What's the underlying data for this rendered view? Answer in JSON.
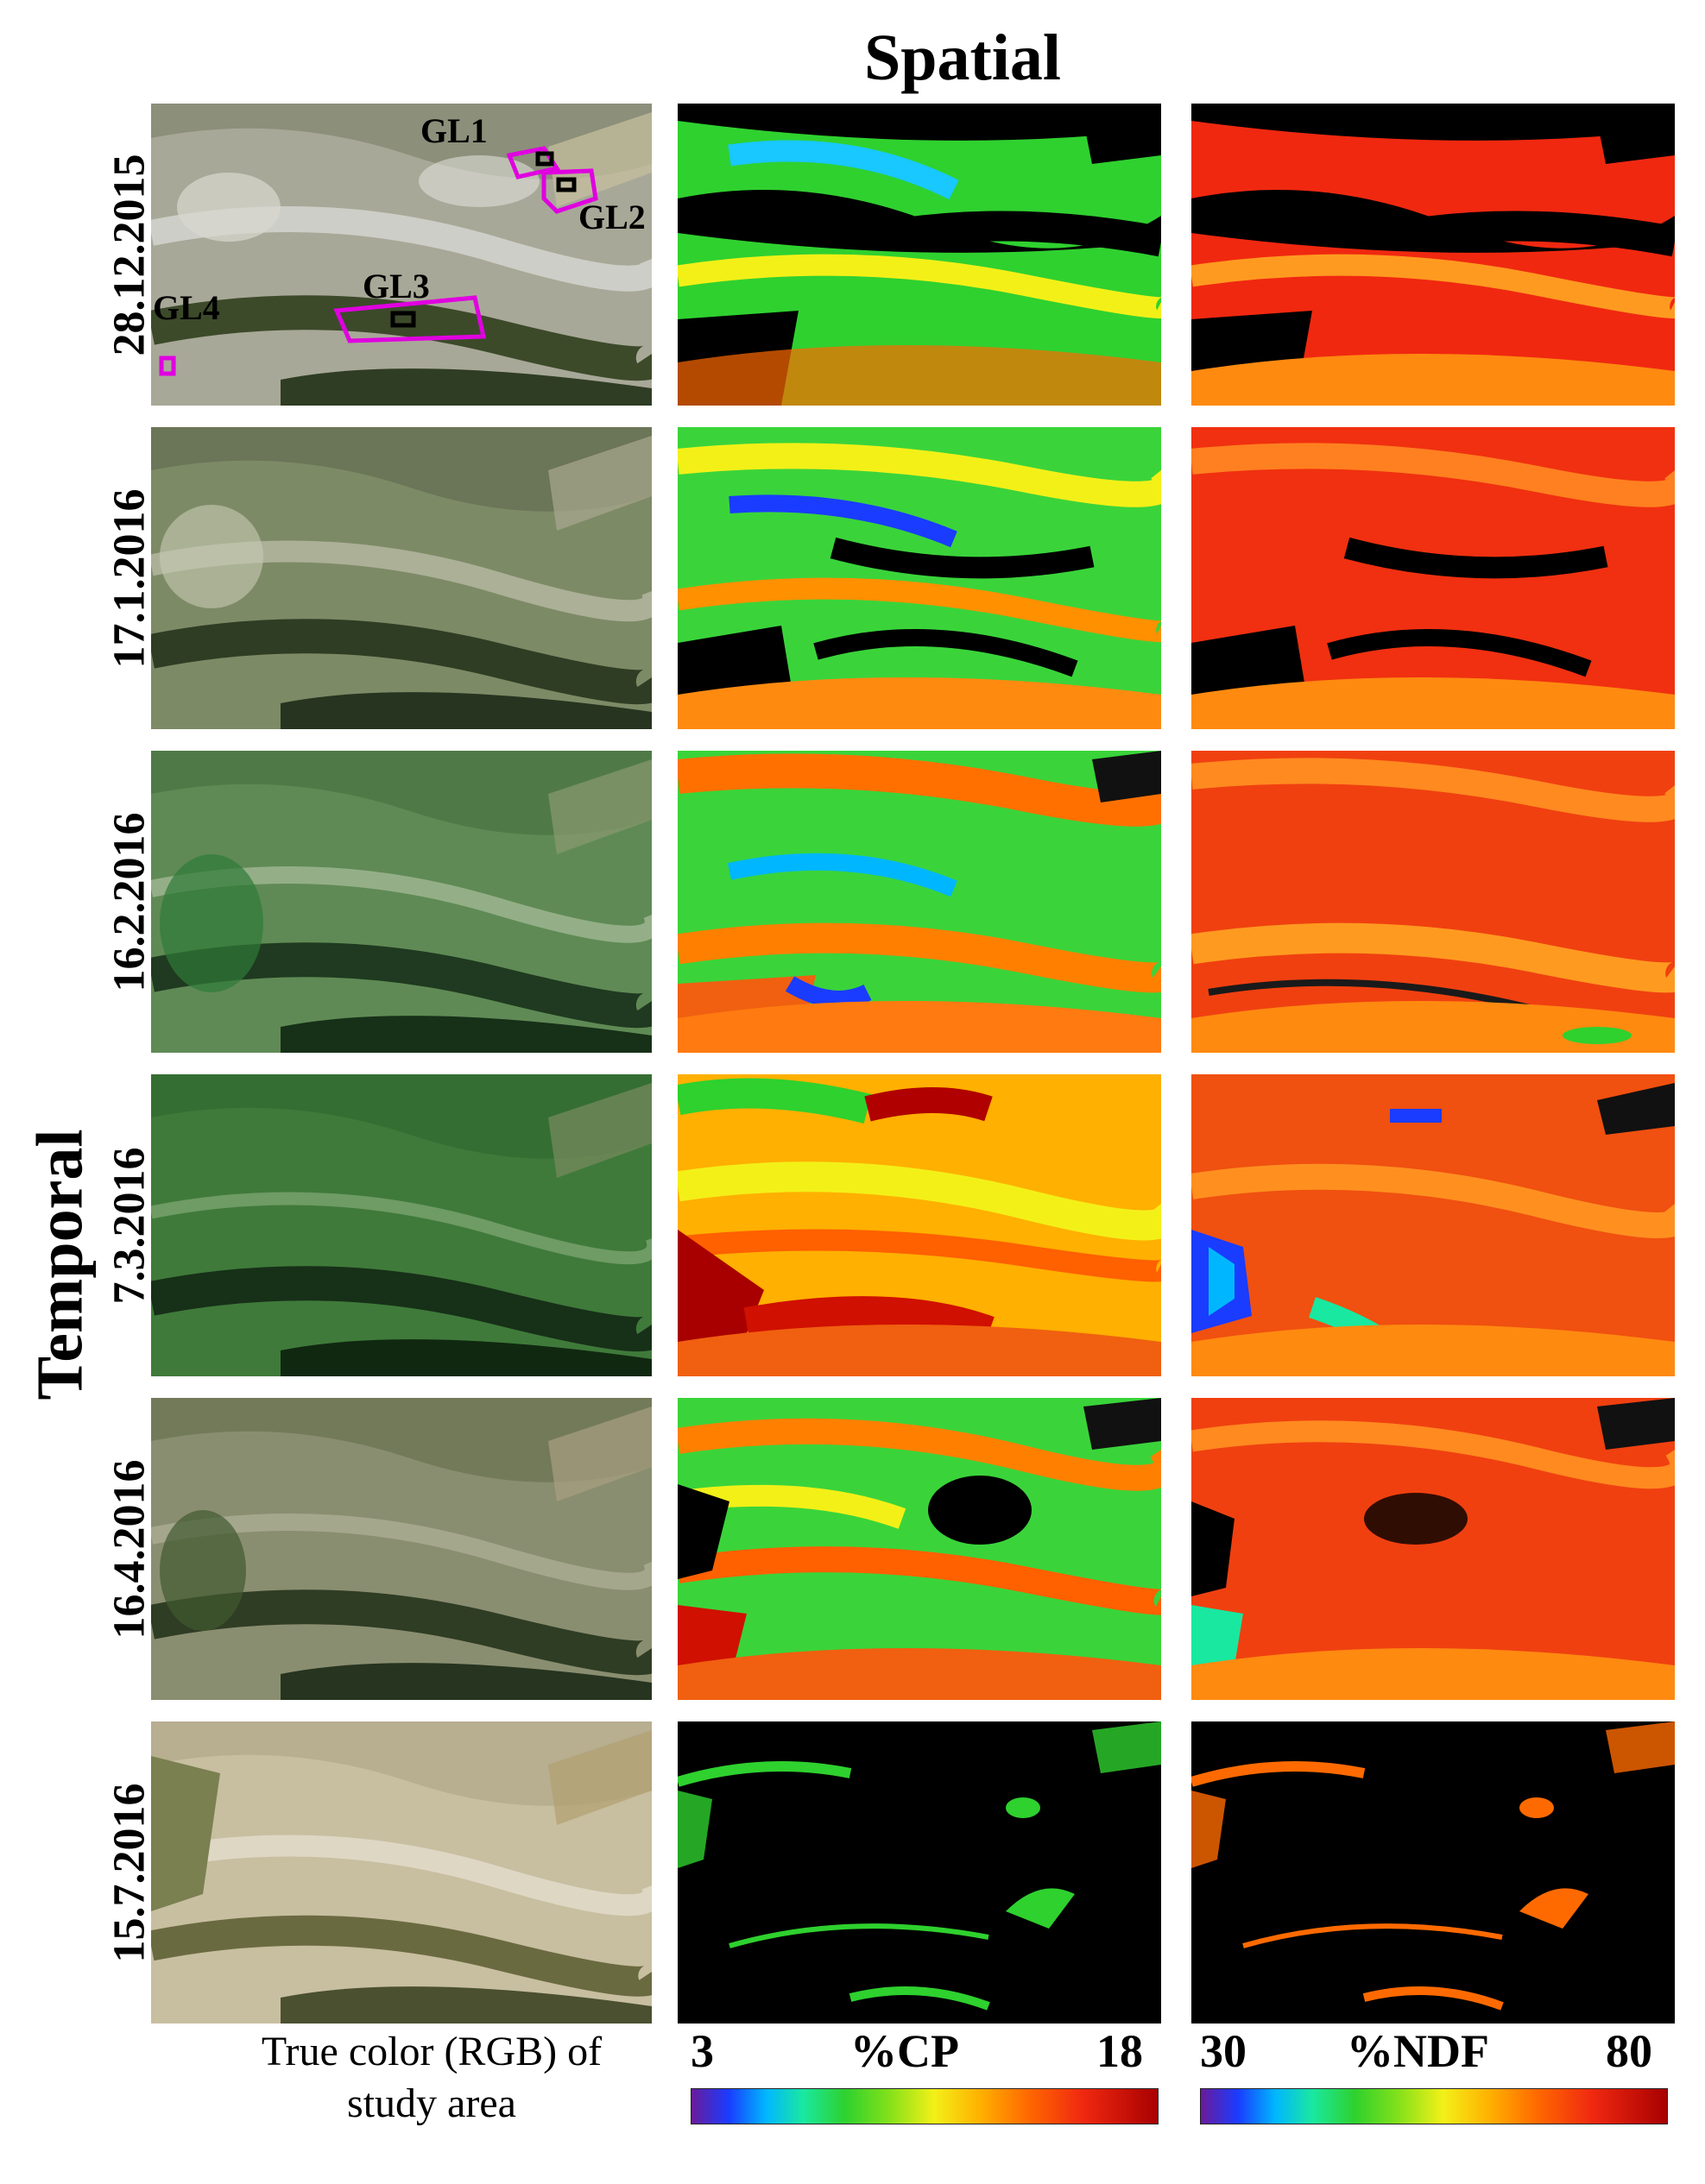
{
  "spatial_title": "Spatial",
  "temporal_title": "Temporal",
  "dates": [
    "28.12.2015",
    "17.1.2016",
    "16.2.2016",
    "7.3.2016",
    "16.4.2016",
    "15.7.2016"
  ],
  "rgb_caption_line1": "True color (RGB) of",
  "rgb_caption_line2": "study area",
  "map_labels": [
    "GL1",
    "GL2",
    "GL3",
    "GL4"
  ],
  "cp_colorbar": {
    "min": "3",
    "label": "%CP",
    "max": "18"
  },
  "ndf_colorbar": {
    "min": "30",
    "label": "%NDF",
    "max": "80"
  },
  "colors": {
    "aoi_outline": "#e000e0",
    "masked": "#000000",
    "grassland_rgb": "#5f7d45"
  }
}
